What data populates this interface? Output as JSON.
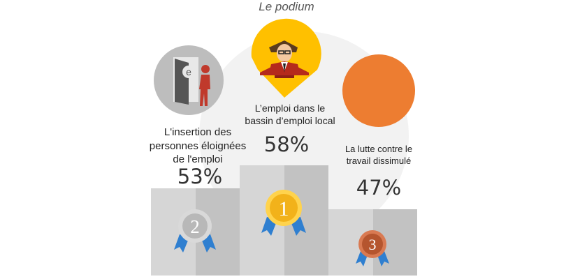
{
  "title": "Le podium",
  "colors": {
    "podium_light": "#d6d6d6",
    "podium_dark": "#c2c2c2",
    "backdrop": "#f2f2f2",
    "icon_grey": "#bdbdbd",
    "pin_yellow": "#ffc000",
    "circle_orange": "#ed7d31",
    "ribbon_blue": "#2f7fd0",
    "gold": "#f2b21a",
    "silver": "#b8b8b8",
    "bronze": "#b5552e"
  },
  "chart_data": {
    "type": "bar",
    "categories": [
      "L'insertion des personnes éloignées de l'emploi",
      "L’emploi dans le bassin d’emploi local",
      "La lutte contre le travail dissimulé"
    ],
    "values": [
      53,
      58,
      47
    ],
    "ranks": [
      2,
      1,
      3
    ],
    "title": "Le podium"
  },
  "items": [
    {
      "label_lines": [
        "L'insertion des",
        "personnes éloignées",
        "de l'emploi"
      ],
      "pct": "53%",
      "rank": "2",
      "icon": "door-exit-icon"
    },
    {
      "label_lines": [
        "L’emploi dans le",
        "bassin d’emploi local"
      ],
      "pct": "58%",
      "rank": "1",
      "icon": "businessman-icon"
    },
    {
      "label_lines": [
        "La lutte contre le",
        "travail dissimulé"
      ],
      "pct": "47%",
      "rank": "3",
      "icon": "orange-circle"
    }
  ]
}
